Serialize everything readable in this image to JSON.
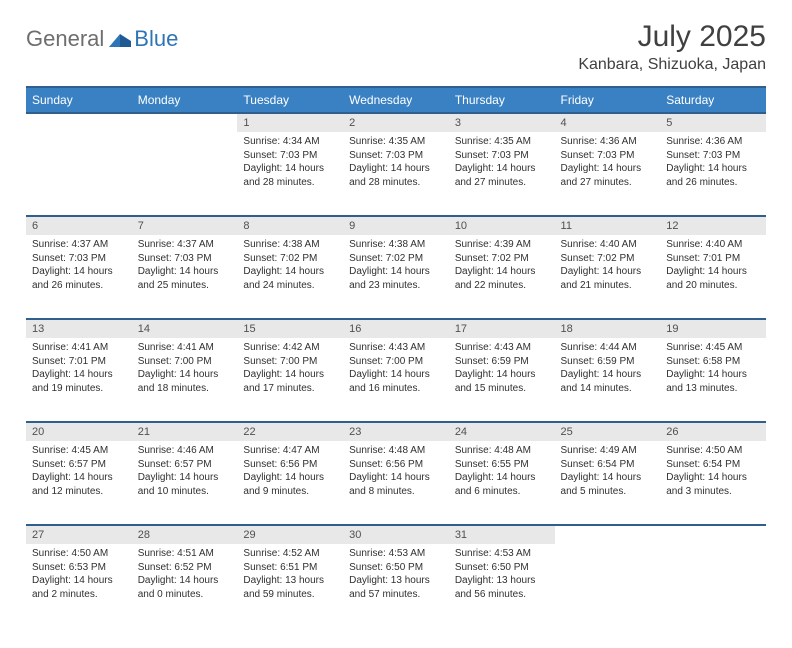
{
  "brand": {
    "text1": "General",
    "text2": "Blue"
  },
  "title": "July 2025",
  "location": "Kanbara, Shizuoka, Japan",
  "colors": {
    "header_bg": "#3a81c4",
    "header_border": "#2f5f8f",
    "daynum_bg": "#e8e8e8",
    "brand_gray": "#6e6e6e",
    "brand_blue": "#2f75b5"
  },
  "day_names": [
    "Sunday",
    "Monday",
    "Tuesday",
    "Wednesday",
    "Thursday",
    "Friday",
    "Saturday"
  ],
  "weeks": [
    {
      "nums": [
        "",
        "",
        "1",
        "2",
        "3",
        "4",
        "5"
      ],
      "cells": [
        null,
        null,
        {
          "sunrise": "Sunrise: 4:34 AM",
          "sunset": "Sunset: 7:03 PM",
          "day1": "Daylight: 14 hours",
          "day2": "and 28 minutes."
        },
        {
          "sunrise": "Sunrise: 4:35 AM",
          "sunset": "Sunset: 7:03 PM",
          "day1": "Daylight: 14 hours",
          "day2": "and 28 minutes."
        },
        {
          "sunrise": "Sunrise: 4:35 AM",
          "sunset": "Sunset: 7:03 PM",
          "day1": "Daylight: 14 hours",
          "day2": "and 27 minutes."
        },
        {
          "sunrise": "Sunrise: 4:36 AM",
          "sunset": "Sunset: 7:03 PM",
          "day1": "Daylight: 14 hours",
          "day2": "and 27 minutes."
        },
        {
          "sunrise": "Sunrise: 4:36 AM",
          "sunset": "Sunset: 7:03 PM",
          "day1": "Daylight: 14 hours",
          "day2": "and 26 minutes."
        }
      ]
    },
    {
      "nums": [
        "6",
        "7",
        "8",
        "9",
        "10",
        "11",
        "12"
      ],
      "cells": [
        {
          "sunrise": "Sunrise: 4:37 AM",
          "sunset": "Sunset: 7:03 PM",
          "day1": "Daylight: 14 hours",
          "day2": "and 26 minutes."
        },
        {
          "sunrise": "Sunrise: 4:37 AM",
          "sunset": "Sunset: 7:03 PM",
          "day1": "Daylight: 14 hours",
          "day2": "and 25 minutes."
        },
        {
          "sunrise": "Sunrise: 4:38 AM",
          "sunset": "Sunset: 7:02 PM",
          "day1": "Daylight: 14 hours",
          "day2": "and 24 minutes."
        },
        {
          "sunrise": "Sunrise: 4:38 AM",
          "sunset": "Sunset: 7:02 PM",
          "day1": "Daylight: 14 hours",
          "day2": "and 23 minutes."
        },
        {
          "sunrise": "Sunrise: 4:39 AM",
          "sunset": "Sunset: 7:02 PM",
          "day1": "Daylight: 14 hours",
          "day2": "and 22 minutes."
        },
        {
          "sunrise": "Sunrise: 4:40 AM",
          "sunset": "Sunset: 7:02 PM",
          "day1": "Daylight: 14 hours",
          "day2": "and 21 minutes."
        },
        {
          "sunrise": "Sunrise: 4:40 AM",
          "sunset": "Sunset: 7:01 PM",
          "day1": "Daylight: 14 hours",
          "day2": "and 20 minutes."
        }
      ]
    },
    {
      "nums": [
        "13",
        "14",
        "15",
        "16",
        "17",
        "18",
        "19"
      ],
      "cells": [
        {
          "sunrise": "Sunrise: 4:41 AM",
          "sunset": "Sunset: 7:01 PM",
          "day1": "Daylight: 14 hours",
          "day2": "and 19 minutes."
        },
        {
          "sunrise": "Sunrise: 4:41 AM",
          "sunset": "Sunset: 7:00 PM",
          "day1": "Daylight: 14 hours",
          "day2": "and 18 minutes."
        },
        {
          "sunrise": "Sunrise: 4:42 AM",
          "sunset": "Sunset: 7:00 PM",
          "day1": "Daylight: 14 hours",
          "day2": "and 17 minutes."
        },
        {
          "sunrise": "Sunrise: 4:43 AM",
          "sunset": "Sunset: 7:00 PM",
          "day1": "Daylight: 14 hours",
          "day2": "and 16 minutes."
        },
        {
          "sunrise": "Sunrise: 4:43 AM",
          "sunset": "Sunset: 6:59 PM",
          "day1": "Daylight: 14 hours",
          "day2": "and 15 minutes."
        },
        {
          "sunrise": "Sunrise: 4:44 AM",
          "sunset": "Sunset: 6:59 PM",
          "day1": "Daylight: 14 hours",
          "day2": "and 14 minutes."
        },
        {
          "sunrise": "Sunrise: 4:45 AM",
          "sunset": "Sunset: 6:58 PM",
          "day1": "Daylight: 14 hours",
          "day2": "and 13 minutes."
        }
      ]
    },
    {
      "nums": [
        "20",
        "21",
        "22",
        "23",
        "24",
        "25",
        "26"
      ],
      "cells": [
        {
          "sunrise": "Sunrise: 4:45 AM",
          "sunset": "Sunset: 6:57 PM",
          "day1": "Daylight: 14 hours",
          "day2": "and 12 minutes."
        },
        {
          "sunrise": "Sunrise: 4:46 AM",
          "sunset": "Sunset: 6:57 PM",
          "day1": "Daylight: 14 hours",
          "day2": "and 10 minutes."
        },
        {
          "sunrise": "Sunrise: 4:47 AM",
          "sunset": "Sunset: 6:56 PM",
          "day1": "Daylight: 14 hours",
          "day2": "and 9 minutes."
        },
        {
          "sunrise": "Sunrise: 4:48 AM",
          "sunset": "Sunset: 6:56 PM",
          "day1": "Daylight: 14 hours",
          "day2": "and 8 minutes."
        },
        {
          "sunrise": "Sunrise: 4:48 AM",
          "sunset": "Sunset: 6:55 PM",
          "day1": "Daylight: 14 hours",
          "day2": "and 6 minutes."
        },
        {
          "sunrise": "Sunrise: 4:49 AM",
          "sunset": "Sunset: 6:54 PM",
          "day1": "Daylight: 14 hours",
          "day2": "and 5 minutes."
        },
        {
          "sunrise": "Sunrise: 4:50 AM",
          "sunset": "Sunset: 6:54 PM",
          "day1": "Daylight: 14 hours",
          "day2": "and 3 minutes."
        }
      ]
    },
    {
      "nums": [
        "27",
        "28",
        "29",
        "30",
        "31",
        "",
        ""
      ],
      "cells": [
        {
          "sunrise": "Sunrise: 4:50 AM",
          "sunset": "Sunset: 6:53 PM",
          "day1": "Daylight: 14 hours",
          "day2": "and 2 minutes."
        },
        {
          "sunrise": "Sunrise: 4:51 AM",
          "sunset": "Sunset: 6:52 PM",
          "day1": "Daylight: 14 hours",
          "day2": "and 0 minutes."
        },
        {
          "sunrise": "Sunrise: 4:52 AM",
          "sunset": "Sunset: 6:51 PM",
          "day1": "Daylight: 13 hours",
          "day2": "and 59 minutes."
        },
        {
          "sunrise": "Sunrise: 4:53 AM",
          "sunset": "Sunset: 6:50 PM",
          "day1": "Daylight: 13 hours",
          "day2": "and 57 minutes."
        },
        {
          "sunrise": "Sunrise: 4:53 AM",
          "sunset": "Sunset: 6:50 PM",
          "day1": "Daylight: 13 hours",
          "day2": "and 56 minutes."
        },
        null,
        null
      ]
    }
  ]
}
